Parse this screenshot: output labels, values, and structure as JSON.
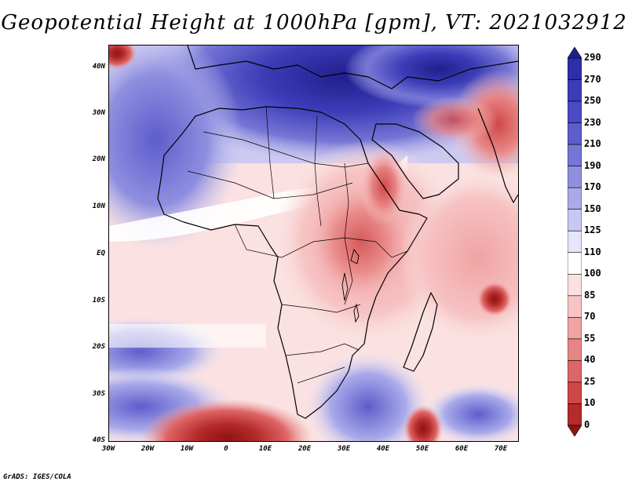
{
  "title": "Geopotential Height at 1000hPa [gpm], VT: 2021032912",
  "credit": "GrADS: IGES/COLA",
  "axes": {
    "lat_labels": [
      "40N",
      "30N",
      "20N",
      "10N",
      "EQ",
      "10S",
      "20S",
      "30S",
      "40S"
    ],
    "lon_labels": [
      "30W",
      "20W",
      "10W",
      "0",
      "10E",
      "20E",
      "30E",
      "40E",
      "50E",
      "60E",
      "70E"
    ]
  },
  "colorbar": {
    "labels": [
      "290",
      "270",
      "250",
      "230",
      "210",
      "190",
      "170",
      "150",
      "125",
      "110",
      "100",
      "85",
      "70",
      "55",
      "40",
      "25",
      "10",
      "0"
    ],
    "colors": [
      "#1f1f8c",
      "#2e2ea6",
      "#3c3cb8",
      "#4a4ac4",
      "#5d5dcc",
      "#7676d6",
      "#8f8fe0",
      "#aaaaea",
      "#c8c8f2",
      "#e6e6fa",
      "#ffffff",
      "#fbe1e1",
      "#f7c3c3",
      "#f0a3a3",
      "#e88484",
      "#de6666",
      "#cf4848",
      "#b52a2a",
      "#8f1414"
    ]
  },
  "map": {
    "extent": {
      "lon_min": -30,
      "lon_max": 75,
      "lat_min": -40,
      "lat_max": 45
    }
  }
}
